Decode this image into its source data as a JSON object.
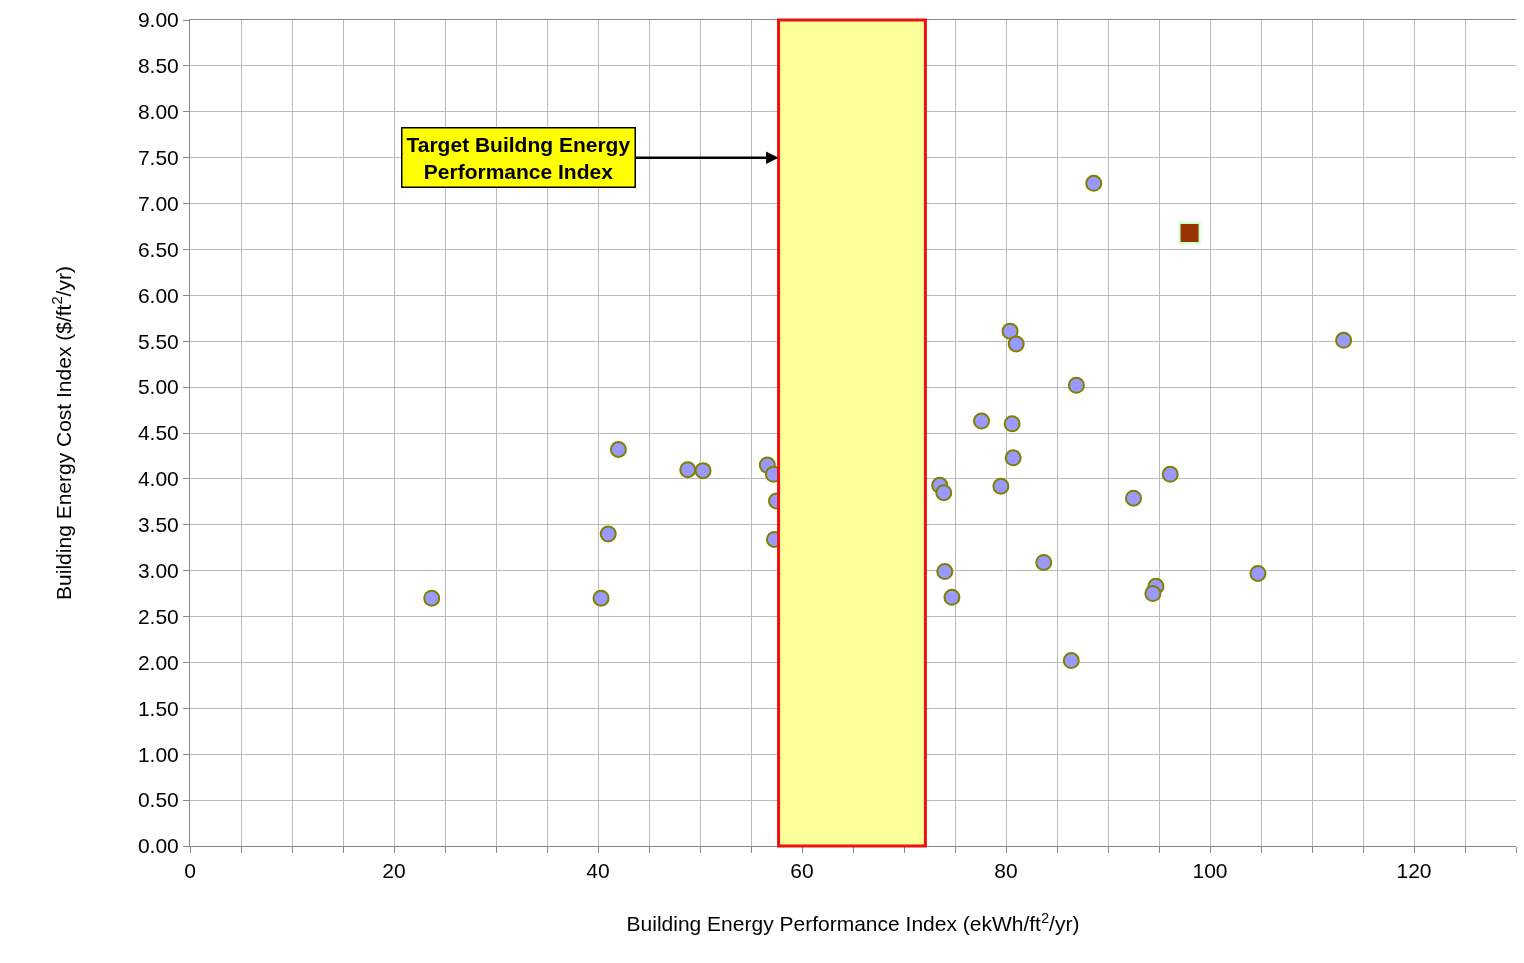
{
  "chart_data": {
    "type": "scatter",
    "xlabel": "Building Energy Performance Index (ekWh/ft$^{2}$/yr)",
    "ylabel": "Building Energy Cost Index ($/ft$^{2}$/yr)",
    "series": [
      {
        "color": "#9999ff",
        "marker": "circle",
        "x": [
          23.7,
          40.3,
          41.0,
          42.0,
          48.8,
          50.3,
          56.6,
          57.2,
          57.5,
          57.3,
          80.4,
          81.0,
          86.9,
          77.6,
          80.6,
          80.7,
          96.1,
          73.5,
          73.9,
          79.5,
          92.5,
          74.0,
          83.7,
          74.7,
          94.7,
          94.4,
          86.4,
          88.6,
          104.7,
          113.1
        ],
        "values": [
          2.7,
          2.7,
          3.4,
          4.32,
          4.1,
          4.09,
          4.15,
          4.05,
          3.76,
          3.34,
          5.61,
          5.47,
          5.02,
          4.63,
          4.6,
          4.23,
          4.05,
          3.93,
          3.85,
          3.92,
          3.79,
          2.99,
          3.09,
          2.71,
          2.83,
          2.75,
          2.02,
          7.22,
          2.97,
          5.51
        ]
      },
      {
        "color": "#993300",
        "marker": "square",
        "x": [
          98.0
        ],
        "values": [
          6.68
        ]
      }
    ],
    "bands": [
      {
        "axis": "x",
        "from": 57.7,
        "to": 72.1,
        "color": "#ffff99",
        "label": "Target Buildng Energy\nPerformance Index"
      }
    ],
    "xlim": [
      0,
      130
    ],
    "xticks": [
      0,
      {
        "value": 5,
        "label": null
      },
      {
        "value": 10,
        "label": null
      },
      {
        "value": 15,
        "label": null
      },
      20,
      {
        "value": 25,
        "label": null
      },
      {
        "value": 30,
        "label": null
      },
      {
        "value": 35,
        "label": null
      },
      40,
      {
        "value": 45,
        "label": null
      },
      {
        "value": 50,
        "label": null
      },
      {
        "value": 55,
        "label": null
      },
      60,
      {
        "value": 65,
        "label": null
      },
      {
        "value": 70,
        "label": null
      },
      {
        "value": 75,
        "label": null
      },
      80,
      {
        "value": 85,
        "label": null
      },
      {
        "value": 90,
        "label": null
      },
      {
        "value": 95,
        "label": null
      },
      100,
      {
        "value": 105,
        "label": null
      },
      {
        "value": 110,
        "label": null
      },
      {
        "value": 115,
        "label": null
      },
      120,
      {
        "value": 125,
        "label": null
      },
      {
        "value": 130,
        "label": null
      }
    ],
    "ylim": [
      0,
      9
    ],
    "yticks": [
      {
        "value": 0,
        "label": "0.00"
      },
      {
        "value": 0.5,
        "label": "0.50"
      },
      {
        "value": 1,
        "label": "1.00"
      },
      {
        "value": 1.5,
        "label": "1.50"
      },
      {
        "value": 2,
        "label": "2.00"
      },
      {
        "value": 2.5,
        "label": "2.50"
      },
      {
        "value": 3,
        "label": "3.00"
      },
      {
        "value": 3.5,
        "label": "3.50"
      },
      {
        "value": 4,
        "label": "4.00"
      },
      {
        "value": 4.5,
        "label": "4.50"
      },
      {
        "value": 5,
        "label": "5.00"
      },
      {
        "value": 5.5,
        "label": "5.50"
      },
      {
        "value": 6,
        "label": "6.00"
      },
      {
        "value": 6.5,
        "label": "6.50"
      },
      {
        "value": 7,
        "label": "7.00"
      },
      {
        "value": 7.5,
        "label": "7.50"
      },
      {
        "value": 8,
        "label": "8.00"
      },
      {
        "value": 8.5,
        "label": "8.50"
      },
      {
        "value": 9,
        "label": "9.00"
      }
    ],
    "grid": true
  }
}
